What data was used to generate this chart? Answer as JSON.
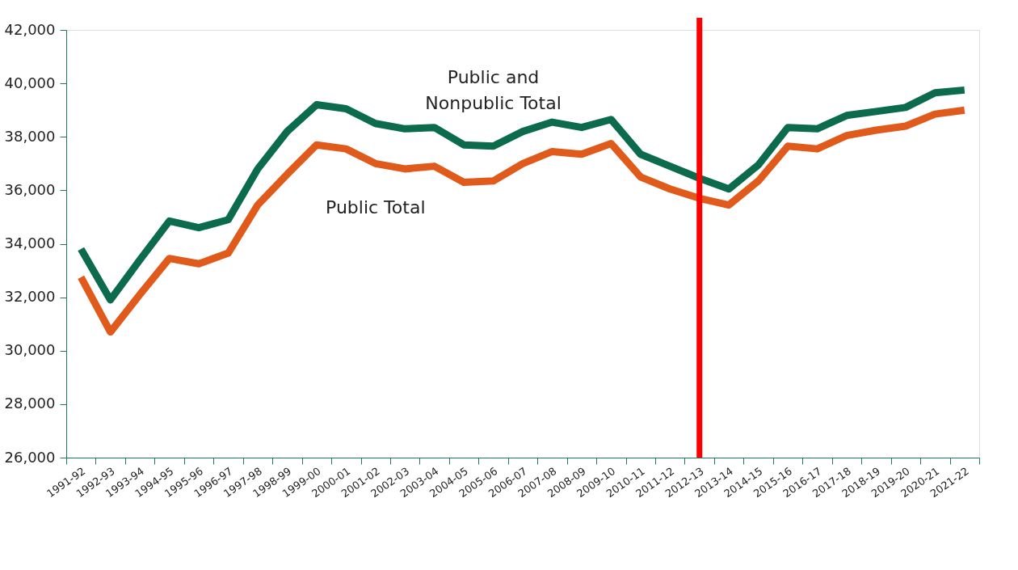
{
  "chart_data": {
    "type": "line",
    "categories": [
      "1991-92",
      "1992-93",
      "1993-94",
      "1994-95",
      "1995-96",
      "1996-97",
      "1997-98",
      "1998-99",
      "1999-00",
      "2000-01",
      "2001-02",
      "2002-03",
      "2003-04",
      "2004-05",
      "2005-06",
      "2006-07",
      "2007-08",
      "2008-09",
      "2009-10",
      "2010-11",
      "2011-12",
      "2012-13",
      "2013-14",
      "2014-15",
      "2015-16",
      "2016-17",
      "2017-18",
      "2018-19",
      "2019-20",
      "2020-21",
      "2021-22"
    ],
    "series": [
      {
        "name": "Public and Nonpublic Total",
        "color": "#0b6b4c",
        "values": [
          33800,
          31900,
          33400,
          34850,
          34600,
          34900,
          36800,
          38200,
          39200,
          39050,
          38500,
          38300,
          38350,
          37700,
          37650,
          38200,
          38550,
          38350,
          38650,
          37350,
          36900,
          36450,
          36050,
          36950,
          38350,
          38300,
          38800,
          38950,
          39100,
          39650,
          39750
        ]
      },
      {
        "name": "Public Total",
        "color": "#e05a1c",
        "values": [
          32750,
          30700,
          32100,
          33450,
          33250,
          33650,
          35450,
          36600,
          37700,
          37550,
          37000,
          36800,
          36900,
          36300,
          36350,
          37000,
          37450,
          37350,
          37750,
          36500,
          36050,
          35700,
          35450,
          36350,
          37650,
          37550,
          38050,
          38250,
          38400,
          38850,
          39000
        ]
      }
    ],
    "ylim": [
      26000,
      42000
    ],
    "yticks": [
      {
        "value": 26000,
        "label": "26,000"
      },
      {
        "value": 28000,
        "label": "28,000"
      },
      {
        "value": 30000,
        "label": "30,000"
      },
      {
        "value": 32000,
        "label": "32,000"
      },
      {
        "value": 34000,
        "label": "34,000"
      },
      {
        "value": 36000,
        "label": "36,000"
      },
      {
        "value": 38000,
        "label": "38,000"
      },
      {
        "value": 40000,
        "label": "40,000"
      },
      {
        "value": 42000,
        "label": "42,000"
      }
    ],
    "ref_lines": [
      {
        "axis": "x",
        "value": "2012-13",
        "color": "#ff0000"
      }
    ],
    "grid": false,
    "legend": false,
    "marker": "none",
    "line_style": "solid"
  }
}
